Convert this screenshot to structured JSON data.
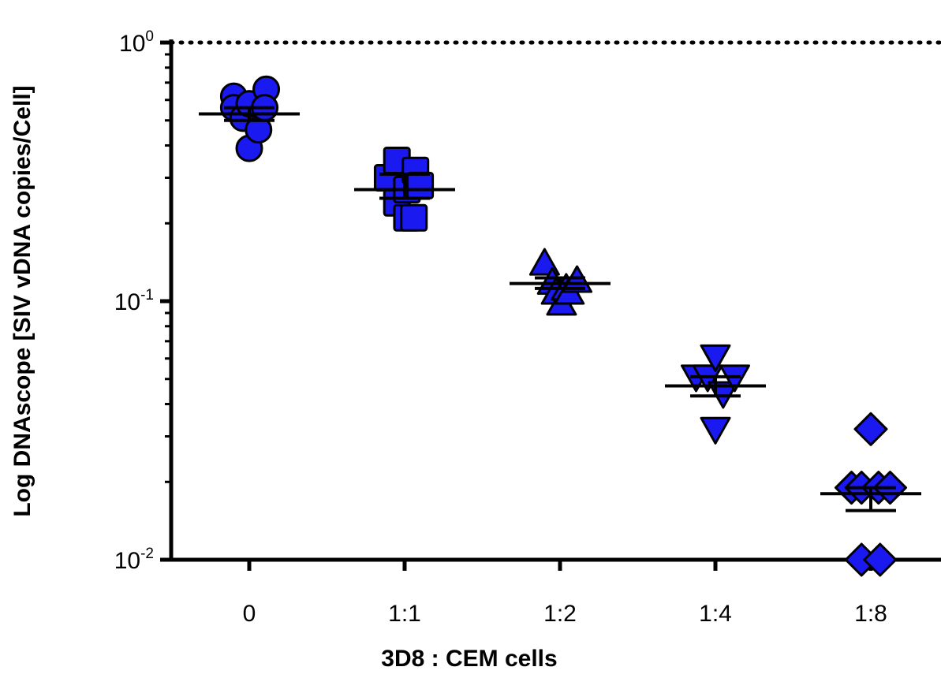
{
  "chart_data": {
    "type": "scatter",
    "title": "",
    "xlabel": "3D8 : CEM cells",
    "ylabel": "Log DNAscope [SIV vDNA copies/Cell]",
    "yscale": "log",
    "ylim": [
      0.01,
      1
    ],
    "y_ticks": [
      {
        "value": 1,
        "base": "10",
        "exp": "0"
      },
      {
        "value": 0.1,
        "base": "10",
        "exp": "-1"
      },
      {
        "value": 0.01,
        "base": "10",
        "exp": "-2"
      }
    ],
    "reference_line": {
      "y": 1,
      "style": "dotted"
    },
    "grid": false,
    "legend": "none",
    "marker_color": "#1a1af0",
    "categories": [
      "0",
      "1:1",
      "1:2",
      "1:4",
      "1:8"
    ],
    "groups": [
      {
        "category": "0",
        "marker": "circle",
        "points": [
          {
            "offset": -0.2,
            "y": 0.62
          },
          {
            "offset": -0.2,
            "y": 0.56
          },
          {
            "offset": -0.08,
            "y": 0.51
          },
          {
            "offset": 0.0,
            "y": 0.58
          },
          {
            "offset": 0.0,
            "y": 0.39
          },
          {
            "offset": 0.12,
            "y": 0.46
          },
          {
            "offset": 0.22,
            "y": 0.66
          },
          {
            "offset": 0.2,
            "y": 0.56
          }
        ],
        "mean": 0.53,
        "sem": [
          0.5,
          0.56
        ]
      },
      {
        "category": "1:1",
        "marker": "square",
        "points": [
          {
            "offset": -0.22,
            "y": 0.3
          },
          {
            "offset": -0.1,
            "y": 0.35
          },
          {
            "offset": -0.1,
            "y": 0.24
          },
          {
            "offset": 0.03,
            "y": 0.27
          },
          {
            "offset": 0.03,
            "y": 0.21
          },
          {
            "offset": 0.12,
            "y": 0.21
          },
          {
            "offset": 0.14,
            "y": 0.32
          },
          {
            "offset": 0.2,
            "y": 0.28
          }
        ],
        "mean": 0.27,
        "sem": [
          0.25,
          0.31
        ]
      },
      {
        "category": "1:2",
        "marker": "triangle-up",
        "points": [
          {
            "offset": -0.2,
            "y": 0.14
          },
          {
            "offset": -0.1,
            "y": 0.118
          },
          {
            "offset": -0.05,
            "y": 0.108
          },
          {
            "offset": 0.02,
            "y": 0.098
          },
          {
            "offset": 0.08,
            "y": 0.112
          },
          {
            "offset": 0.12,
            "y": 0.108
          },
          {
            "offset": 0.22,
            "y": 0.12
          }
        ],
        "mean": 0.117,
        "sem": [
          0.112,
          0.123
        ]
      },
      {
        "category": "1:4",
        "marker": "triangle-down",
        "points": [
          {
            "offset": -0.25,
            "y": 0.051
          },
          {
            "offset": -0.1,
            "y": 0.051
          },
          {
            "offset": 0.0,
            "y": 0.061
          },
          {
            "offset": 0.0,
            "y": 0.032
          },
          {
            "offset": 0.1,
            "y": 0.044
          },
          {
            "offset": 0.25,
            "y": 0.051
          }
        ],
        "mean": 0.047,
        "sem": [
          0.043,
          0.051
        ]
      },
      {
        "category": "1:8",
        "marker": "diamond",
        "points": [
          {
            "offset": -0.25,
            "y": 0.019
          },
          {
            "offset": -0.12,
            "y": 0.019
          },
          {
            "offset": 0.0,
            "y": 0.032
          },
          {
            "offset": 0.1,
            "y": 0.019
          },
          {
            "offset": 0.25,
            "y": 0.019
          },
          {
            "offset": -0.12,
            "y": 0.01
          },
          {
            "offset": 0.12,
            "y": 0.01
          }
        ],
        "mean": 0.018,
        "sem": [
          0.0155,
          0.019
        ]
      }
    ]
  }
}
